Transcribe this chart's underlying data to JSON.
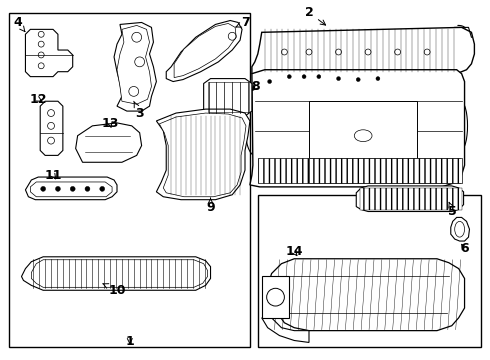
{
  "bg_color": "#ffffff",
  "line_color": "#000000",
  "fig_width": 4.9,
  "fig_height": 3.6,
  "dpi": 100,
  "font_size": 9
}
